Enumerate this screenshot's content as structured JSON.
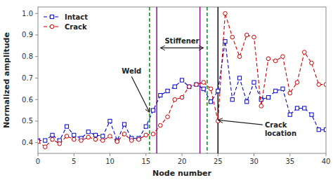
{
  "chart_data": {
    "type": "line",
    "xlabel": "Node number",
    "ylabel": "Normalized amplitude",
    "x": [
      0,
      1,
      2,
      3,
      4,
      5,
      6,
      7,
      8,
      9,
      10,
      11,
      12,
      13,
      14,
      15,
      16,
      17,
      18,
      19,
      20,
      21,
      22,
      23,
      24,
      25,
      26,
      27,
      28,
      29,
      30,
      31,
      32,
      33,
      34,
      35,
      36,
      37,
      38,
      39,
      40
    ],
    "series": [
      {
        "name": "Intact",
        "color": "#0000cc",
        "marker": "square",
        "line_style": "dashed",
        "values": [
          0.41,
          0.41,
          0.435,
          0.41,
          0.475,
          0.435,
          0.42,
          0.45,
          0.435,
          0.43,
          0.5,
          0.41,
          0.485,
          0.42,
          0.42,
          0.475,
          0.55,
          0.62,
          0.64,
          0.66,
          0.69,
          0.66,
          0.67,
          0.65,
          0.59,
          0.64,
          0.87,
          0.6,
          0.7,
          0.59,
          0.68,
          0.6,
          0.61,
          0.64,
          0.65,
          0.53,
          0.56,
          0.56,
          0.53,
          0.46,
          0.46
        ]
      },
      {
        "name": "Crack",
        "color": "#cc0000",
        "marker": "circle",
        "line_style": "dashed",
        "values": [
          0.405,
          0.38,
          0.415,
          0.395,
          0.43,
          0.415,
          0.41,
          0.425,
          0.415,
          0.41,
          0.43,
          0.405,
          0.44,
          0.41,
          0.415,
          0.435,
          0.44,
          0.48,
          0.52,
          0.6,
          0.61,
          0.66,
          0.67,
          0.68,
          0.65,
          0.5,
          1.0,
          0.89,
          0.8,
          0.9,
          0.89,
          0.57,
          0.79,
          0.78,
          0.8,
          0.63,
          0.68,
          0.82,
          0.77,
          0.67,
          0.67
        ]
      }
    ],
    "xlim": [
      0,
      40
    ],
    "ylim": [
      0.35,
      1.03
    ],
    "xticks": [
      0,
      5,
      10,
      15,
      20,
      25,
      30,
      35,
      40
    ],
    "yticks": [
      0.4,
      0.5,
      0.6,
      0.7,
      0.8,
      0.9,
      {
        "value": 1.0,
        "label": "1.0"
      }
    ],
    "grid": false,
    "legend": "upper left",
    "vlines": [
      {
        "x": 15.5,
        "color": "green",
        "line_style": "dashed"
      },
      {
        "x": 23.5,
        "color": "green",
        "line_style": "dashed"
      },
      {
        "x": 16.5,
        "color": "purple",
        "line_style": "solid"
      },
      {
        "x": 22.5,
        "color": "purple",
        "line_style": "solid"
      },
      {
        "x": 25.0,
        "color": "black",
        "line_style": "solid"
      }
    ],
    "annotations": [
      {
        "text": "Stiffener",
        "arrow": "both",
        "arrow_from": [
          17.0,
          0.84
        ],
        "arrow_to": [
          23.0,
          0.84
        ]
      },
      {
        "text": "Weld",
        "x": 13.0,
        "y": 0.72,
        "arrow_to": [
          15.5,
          0.54
        ]
      },
      {
        "text": "Crack\nlocation",
        "x": 31.5,
        "y": 0.47,
        "arrow_to": [
          25.0,
          0.505
        ]
      }
    ]
  }
}
